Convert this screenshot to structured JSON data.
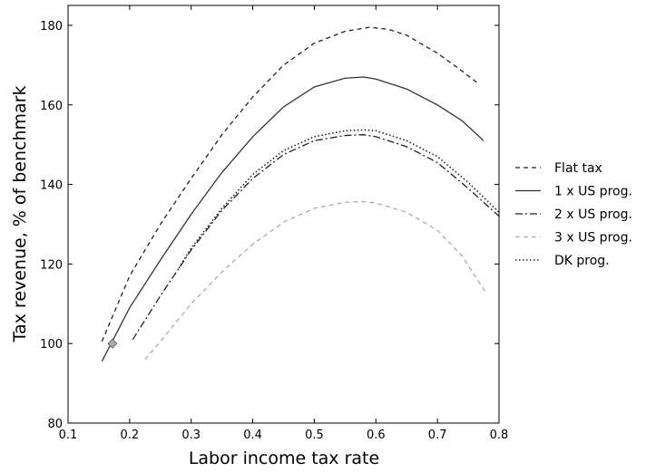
{
  "chart_data": {
    "type": "line",
    "title": "",
    "xlabel": "Labor income tax rate",
    "ylabel": "Tax revenue, % of benchmark",
    "xlim": [
      0.1,
      0.8
    ],
    "ylim": [
      80,
      185
    ],
    "xticks": [
      0.1,
      0.2,
      0.3,
      0.4,
      0.5,
      0.6,
      0.7,
      0.8
    ],
    "yticks": [
      80,
      100,
      120,
      140,
      160,
      180
    ],
    "xtick_labels": [
      "0.1",
      "0.2",
      "0.3",
      "0.4",
      "0.5",
      "0.6",
      "0.7",
      "0.8"
    ],
    "ytick_labels": [
      "80",
      "100",
      "120",
      "140",
      "160",
      "180"
    ],
    "grid": false,
    "legend_position": "outside-right",
    "series": [
      {
        "name": "Flat tax",
        "style": "dashed",
        "color": "#222222",
        "x": [
          0.155,
          0.2,
          0.25,
          0.3,
          0.35,
          0.4,
          0.45,
          0.5,
          0.55,
          0.59,
          0.62,
          0.65,
          0.7,
          0.74,
          0.765
        ],
        "y": [
          100.5,
          117,
          130,
          141.5,
          152.5,
          162,
          170,
          175.5,
          178.5,
          179.5,
          179,
          177.5,
          173,
          168.5,
          165.5
        ]
      },
      {
        "name": "1 x US prog.",
        "style": "solid",
        "color": "#333333",
        "x": [
          0.155,
          0.2,
          0.25,
          0.3,
          0.35,
          0.4,
          0.45,
          0.5,
          0.55,
          0.58,
          0.6,
          0.65,
          0.7,
          0.74,
          0.775
        ],
        "y": [
          95.5,
          109,
          121,
          132.5,
          143,
          152,
          159.5,
          164.5,
          166.7,
          167,
          166.5,
          164,
          160,
          156,
          151
        ]
      },
      {
        "name": "2 x US prog.",
        "style": "dashdot",
        "color": "#222222",
        "x": [
          0.205,
          0.25,
          0.3,
          0.35,
          0.4,
          0.45,
          0.5,
          0.55,
          0.58,
          0.6,
          0.65,
          0.7,
          0.75,
          0.8
        ],
        "y": [
          101,
          112,
          123.5,
          133.5,
          141.5,
          147.5,
          151,
          152.3,
          152.5,
          152,
          149.5,
          145.5,
          139,
          132
        ]
      },
      {
        "name": "3 x US prog.",
        "style": "dashed",
        "color": "#aaaaaa",
        "x": [
          0.225,
          0.25,
          0.3,
          0.35,
          0.4,
          0.45,
          0.5,
          0.55,
          0.58,
          0.6,
          0.65,
          0.7,
          0.74,
          0.78
        ],
        "y": [
          96,
          100.5,
          110,
          118,
          125,
          130.5,
          134,
          135.5,
          135.7,
          135.3,
          133,
          128.5,
          122,
          112.5
        ]
      },
      {
        "name": "DK prog.",
        "style": "dotted",
        "color": "#222222",
        "x": [
          0.28,
          0.3,
          0.35,
          0.4,
          0.45,
          0.5,
          0.55,
          0.58,
          0.6,
          0.65,
          0.7,
          0.75,
          0.8
        ],
        "y": [
          119,
          124,
          134,
          142.5,
          148.5,
          152,
          153.5,
          153.7,
          153.5,
          151,
          147,
          140.5,
          133
        ]
      }
    ],
    "markers": [
      {
        "x": 0.172,
        "y": 100,
        "shape": "diamond",
        "color": "#aaaaaa"
      }
    ]
  }
}
